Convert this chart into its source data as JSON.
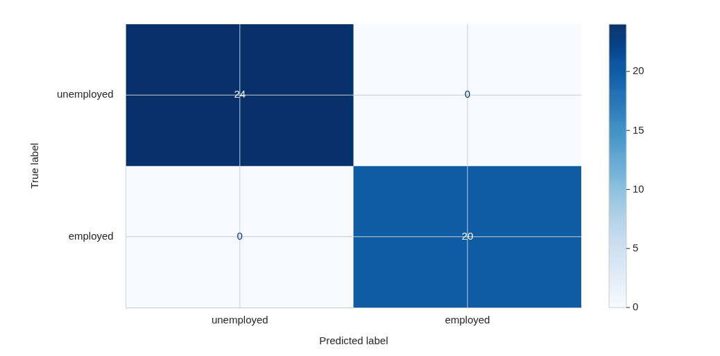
{
  "chart_data": {
    "type": "heatmap",
    "xlabel": "Predicted label",
    "ylabel": "True label",
    "categories": [
      "unemployed",
      "employed"
    ],
    "y_categories": [
      "unemployed",
      "employed"
    ],
    "cells": [
      [
        24,
        0
      ],
      [
        0,
        20
      ]
    ],
    "clim": [
      0,
      24
    ],
    "cticks": [
      0,
      5,
      10,
      15,
      20
    ],
    "data_labels": true,
    "grid": true
  }
}
